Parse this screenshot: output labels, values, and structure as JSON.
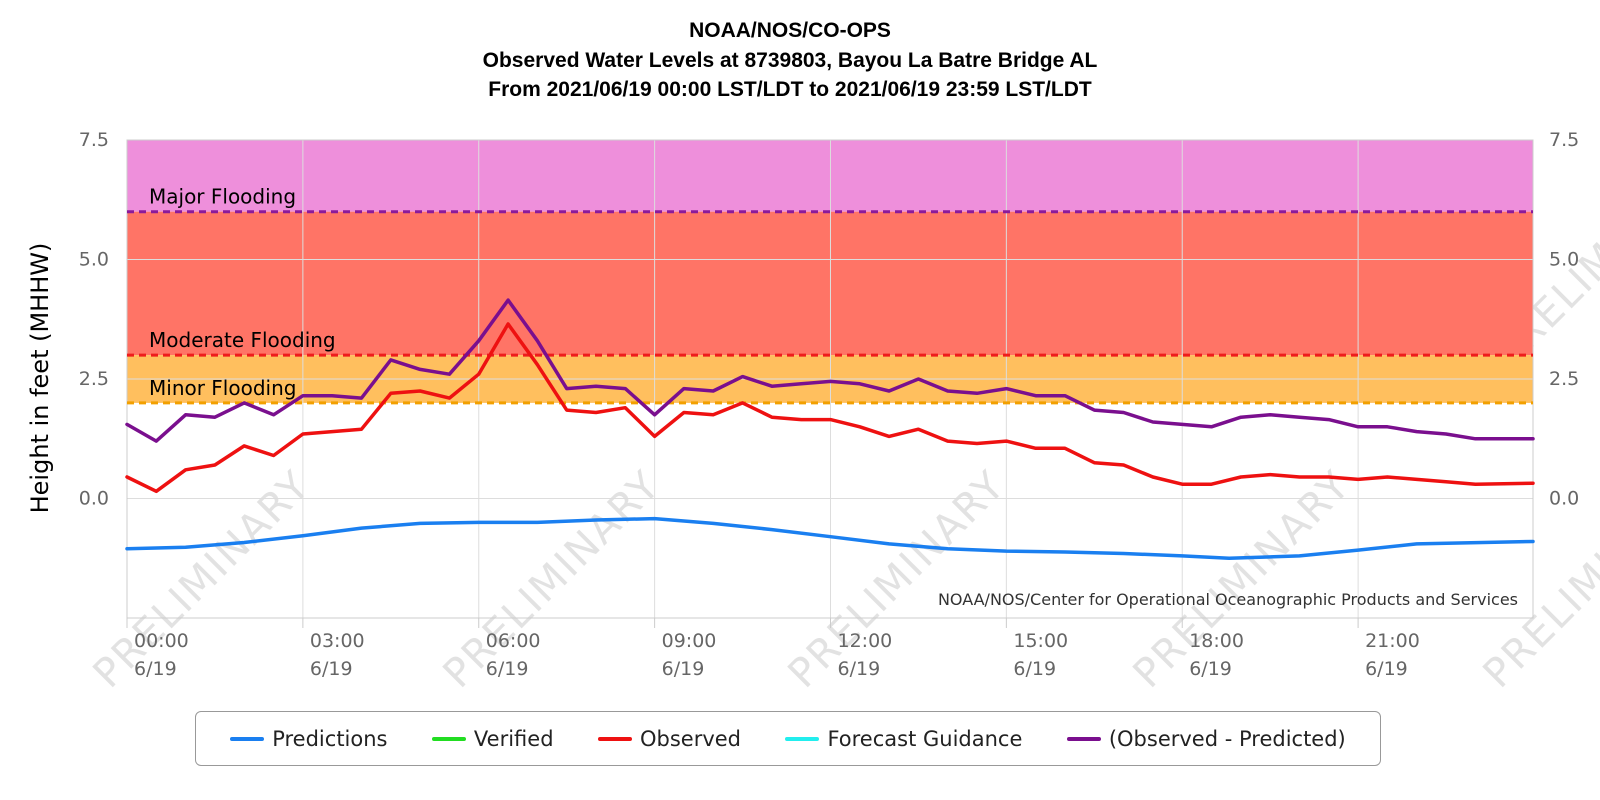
{
  "chart_data": {
    "type": "line",
    "title": [
      "NOAA/NOS/CO-OPS",
      "Observed Water Levels at 8739803, Bayou La Batre Bridge AL",
      "From 2021/06/19 00:00 LST/LDT to 2021/06/19 23:59 LST/LDT"
    ],
    "ylabel": "Height in feet (MHHW)",
    "ylim": [
      -2.5,
      7.5
    ],
    "xlim": [
      "2021-06-19 00:00",
      "2021-06-19 23:59"
    ],
    "yticks": [
      "0.0",
      "2.5",
      "5.0",
      "7.5"
    ],
    "yticks_right": [
      "0.0",
      "2.5",
      "5.0",
      "7.5"
    ],
    "xticks": [
      {
        "time": "00:00",
        "date": "6/19"
      },
      {
        "time": "03:00",
        "date": "6/19"
      },
      {
        "time": "06:00",
        "date": "6/19"
      },
      {
        "time": "09:00",
        "date": "6/19"
      },
      {
        "time": "12:00",
        "date": "6/19"
      },
      {
        "time": "15:00",
        "date": "6/19"
      },
      {
        "time": "18:00",
        "date": "6/19"
      },
      {
        "time": "21:00",
        "date": "6/19"
      }
    ],
    "grid": true,
    "legend_position": "bottom",
    "thresholds": [
      {
        "label": "Major Flooding",
        "value": 6.0,
        "line_color": "#8b1a9b",
        "band_from": 6.0,
        "band_to": 7.5,
        "band_color": "#ee8fdb"
      },
      {
        "label": "Moderate Flooding",
        "value": 3.0,
        "line_color": "#ee1c1c",
        "band_from": 3.0,
        "band_to": 6.0,
        "band_color": "#ff7466"
      },
      {
        "label": "Minor Flooding",
        "value": 2.0,
        "line_color": "#f2a000",
        "band_from": 2.0,
        "band_to": 3.0,
        "band_color": "#ffbf5e"
      }
    ],
    "series": [
      {
        "name": "Predictions",
        "color": "#1a7ff0",
        "x": [
          "00:00",
          "01:00",
          "02:00",
          "03:00",
          "04:00",
          "05:00",
          "06:00",
          "07:00",
          "08:00",
          "09:00",
          "10:00",
          "11:00",
          "12:00",
          "13:00",
          "14:00",
          "15:00",
          "16:00",
          "17:00",
          "18:00",
          "18:48",
          "20:00",
          "21:00",
          "22:00",
          "23:59"
        ],
        "values": [
          -1.05,
          -1.02,
          -0.92,
          -0.78,
          -0.62,
          -0.52,
          -0.5,
          -0.5,
          -0.45,
          -0.42,
          -0.52,
          -0.65,
          -0.8,
          -0.95,
          -1.05,
          -1.1,
          -1.12,
          -1.15,
          -1.2,
          -1.25,
          -1.2,
          -1.08,
          -0.95,
          -0.9
        ]
      },
      {
        "name": "Verified",
        "color": "#22dd22",
        "x": [],
        "values": []
      },
      {
        "name": "Observed",
        "color": "#ee1111",
        "x": [
          "00:00",
          "00:30",
          "01:00",
          "01:30",
          "02:00",
          "02:30",
          "03:00",
          "03:30",
          "04:00",
          "04:30",
          "05:00",
          "05:30",
          "06:00",
          "06:30",
          "07:00",
          "07:30",
          "08:00",
          "08:30",
          "09:00",
          "09:30",
          "10:00",
          "10:30",
          "11:00",
          "11:30",
          "12:00",
          "12:30",
          "13:00",
          "13:30",
          "14:00",
          "14:30",
          "15:00",
          "15:30",
          "16:00",
          "16:30",
          "17:00",
          "17:30",
          "18:00",
          "18:30",
          "19:00",
          "19:30",
          "20:00",
          "20:30",
          "21:00",
          "21:30",
          "22:00",
          "22:30",
          "23:00",
          "23:59"
        ],
        "values": [
          0.45,
          0.15,
          0.6,
          0.7,
          1.1,
          0.9,
          1.35,
          1.4,
          1.45,
          2.2,
          2.25,
          2.1,
          2.6,
          3.65,
          2.8,
          1.85,
          1.8,
          1.9,
          1.3,
          1.8,
          1.75,
          2.0,
          1.7,
          1.65,
          1.65,
          1.5,
          1.3,
          1.45,
          1.2,
          1.15,
          1.2,
          1.05,
          1.05,
          0.75,
          0.7,
          0.45,
          0.3,
          0.3,
          0.45,
          0.5,
          0.45,
          0.45,
          0.4,
          0.45,
          0.4,
          0.35,
          0.3,
          0.32
        ]
      },
      {
        "name": "Forecast Guidance",
        "color": "#22eeee",
        "x": [],
        "values": []
      },
      {
        "name": "(Observed - Predicted)",
        "color": "#7a0f8e",
        "x": [
          "00:00",
          "00:30",
          "01:00",
          "01:30",
          "02:00",
          "02:30",
          "03:00",
          "03:30",
          "04:00",
          "04:30",
          "05:00",
          "05:30",
          "06:00",
          "06:30",
          "07:00",
          "07:30",
          "08:00",
          "08:30",
          "09:00",
          "09:30",
          "10:00",
          "10:30",
          "11:00",
          "11:30",
          "12:00",
          "12:30",
          "13:00",
          "13:30",
          "14:00",
          "14:30",
          "15:00",
          "15:30",
          "16:00",
          "16:30",
          "17:00",
          "17:30",
          "18:00",
          "18:30",
          "19:00",
          "19:30",
          "20:00",
          "20:30",
          "21:00",
          "21:30",
          "22:00",
          "22:30",
          "23:00",
          "23:59"
        ],
        "values": [
          1.55,
          1.2,
          1.75,
          1.7,
          2.0,
          1.75,
          2.15,
          2.15,
          2.1,
          2.9,
          2.7,
          2.6,
          3.3,
          4.15,
          3.3,
          2.3,
          2.35,
          2.3,
          1.75,
          2.3,
          2.25,
          2.55,
          2.35,
          2.4,
          2.45,
          2.4,
          2.25,
          2.5,
          2.25,
          2.2,
          2.3,
          2.15,
          2.15,
          1.85,
          1.8,
          1.6,
          1.55,
          1.5,
          1.7,
          1.75,
          1.7,
          1.65,
          1.5,
          1.5,
          1.4,
          1.35,
          1.25,
          1.25
        ]
      }
    ],
    "credit": "NOAA/NOS/Center for Operational Oceanographic Products and Services",
    "watermark": "PRELIMINARY"
  }
}
